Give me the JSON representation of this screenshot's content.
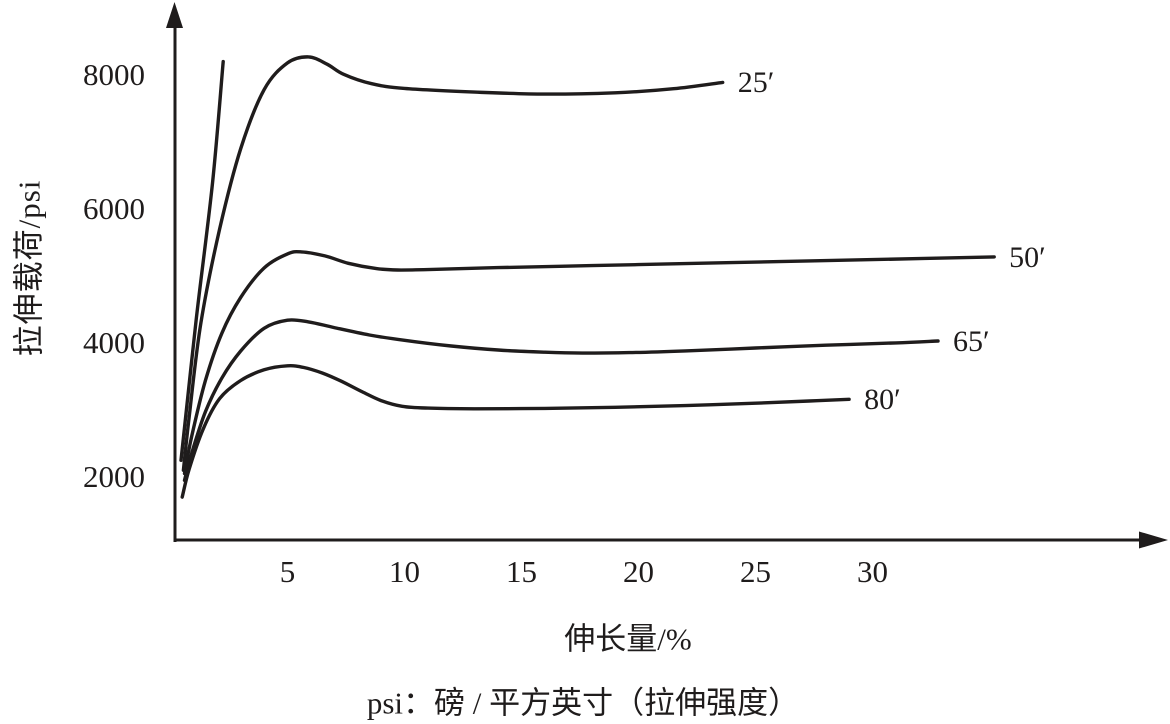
{
  "figure": {
    "y_axis_title": "拉伸载荷/psi",
    "x_axis_title": "伸长量/%",
    "caption": "psi：磅 / 平方英寸（拉伸强度）"
  },
  "chart_data": {
    "type": "line",
    "title": "",
    "xlabel": "伸长量/%",
    "ylabel": "拉伸载荷/psi",
    "caption": "psi：磅 / 平方英寸（拉伸强度）",
    "xlim": [
      0,
      42
    ],
    "ylim": [
      1000,
      9200
    ],
    "x_ticks": [
      5,
      10,
      15,
      20,
      25,
      30
    ],
    "y_ticks": [
      2000,
      4000,
      6000,
      8000
    ],
    "grid": false,
    "legend_position": "labels at right end of each curve",
    "line_color": "#1f1c1c",
    "series": [
      {
        "name": "initial-steep-line",
        "label": "",
        "points": [
          [
            0.45,
            2250
          ],
          [
            1.1,
            4350
          ],
          [
            1.8,
            6400
          ],
          [
            2.25,
            8200
          ]
        ]
      },
      {
        "name": "cure-25min",
        "label": "25′",
        "points": [
          [
            0.55,
            2100
          ],
          [
            0.8,
            2900
          ],
          [
            1.3,
            4300
          ],
          [
            2.1,
            5700
          ],
          [
            3,
            6900
          ],
          [
            4,
            7780
          ],
          [
            5,
            8180
          ],
          [
            5.9,
            8270
          ],
          [
            6.7,
            8160
          ],
          [
            7.4,
            8010
          ],
          [
            8.6,
            7870
          ],
          [
            10,
            7800
          ],
          [
            13,
            7745
          ],
          [
            16,
            7715
          ],
          [
            19,
            7735
          ],
          [
            21.5,
            7795
          ],
          [
            23.6,
            7890
          ]
        ]
      },
      {
        "name": "cure-50min",
        "label": "50′",
        "points": [
          [
            0.6,
            2050
          ],
          [
            0.9,
            2600
          ],
          [
            1.5,
            3450
          ],
          [
            2.2,
            4150
          ],
          [
            3,
            4680
          ],
          [
            4,
            5120
          ],
          [
            5,
            5330
          ],
          [
            5.6,
            5360
          ],
          [
            6.6,
            5300
          ],
          [
            7.6,
            5190
          ],
          [
            8.8,
            5110
          ],
          [
            9.7,
            5090
          ],
          [
            11,
            5095
          ],
          [
            14,
            5125
          ],
          [
            18,
            5155
          ],
          [
            22,
            5185
          ],
          [
            26,
            5215
          ],
          [
            30,
            5245
          ],
          [
            35.2,
            5285
          ]
        ]
      },
      {
        "name": "cure-65min",
        "label": "65′",
        "points": [
          [
            0.6,
            1950
          ],
          [
            0.9,
            2350
          ],
          [
            1.5,
            2980
          ],
          [
            2.2,
            3480
          ],
          [
            3,
            3880
          ],
          [
            4,
            4220
          ],
          [
            5,
            4340
          ],
          [
            5.9,
            4315
          ],
          [
            7,
            4230
          ],
          [
            8.5,
            4120
          ],
          [
            10,
            4040
          ],
          [
            12,
            3955
          ],
          [
            14,
            3895
          ],
          [
            16,
            3862
          ],
          [
            17.6,
            3850
          ],
          [
            19.6,
            3856
          ],
          [
            22,
            3882
          ],
          [
            25,
            3925
          ],
          [
            28,
            3967
          ],
          [
            31,
            4002
          ],
          [
            32.8,
            4030
          ]
        ]
      },
      {
        "name": "cure-80min",
        "label": "80′",
        "points": [
          [
            0.5,
            1700
          ],
          [
            0.8,
            2120
          ],
          [
            1.4,
            2720
          ],
          [
            2.1,
            3170
          ],
          [
            3,
            3440
          ],
          [
            4,
            3600
          ],
          [
            5,
            3660
          ],
          [
            5.7,
            3635
          ],
          [
            6.5,
            3550
          ],
          [
            7.3,
            3430
          ],
          [
            8.2,
            3270
          ],
          [
            9,
            3140
          ],
          [
            9.9,
            3055
          ],
          [
            11,
            3028
          ],
          [
            13,
            3018
          ],
          [
            16,
            3024
          ],
          [
            19,
            3040
          ],
          [
            22,
            3066
          ],
          [
            25,
            3102
          ],
          [
            27.3,
            3135
          ],
          [
            29,
            3160
          ]
        ]
      }
    ]
  }
}
